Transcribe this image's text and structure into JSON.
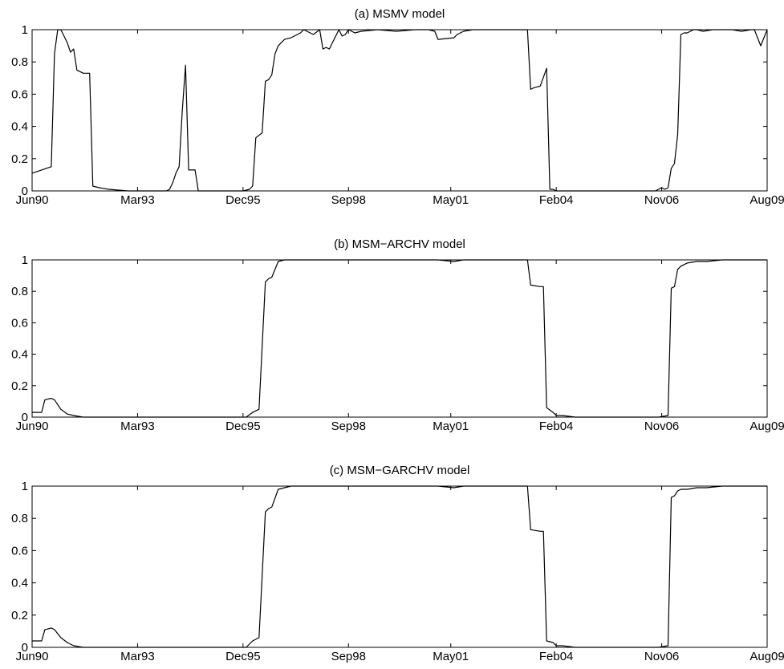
{
  "chart_data": [
    {
      "type": "line",
      "title": "(a) MSMV model",
      "xlabel": "",
      "ylabel": "",
      "xlim": [
        "1990-06",
        "2009-08"
      ],
      "ylim": [
        0,
        1
      ],
      "y_ticks": [
        "0",
        "0.2",
        "0.4",
        "0.6",
        "0.8",
        "1"
      ],
      "x_tick_positions": [
        "1990-06",
        "1993-03",
        "1995-12",
        "1998-09",
        "2001-05",
        "2004-02",
        "2006-11",
        "2009-08"
      ],
      "x_tick_labels": [
        "Jun90",
        "Mar93",
        "Dec95",
        "Sep98",
        "May01",
        "Feb04",
        "Nov06",
        "Aug09"
      ],
      "grid": false,
      "series": [
        {
          "x": [
            "1990-06",
            "1990-09",
            "1990-12",
            "1991-01",
            "1991-02",
            "1991-03",
            "1991-04",
            "1991-05",
            "1991-06",
            "1991-07",
            "1991-08",
            "1991-10",
            "1991-12",
            "1992-01",
            "1992-03",
            "1992-06",
            "1992-12",
            "1993-06",
            "1993-12",
            "1994-01",
            "1994-02",
            "1994-03",
            "1994-04",
            "1994-05",
            "1994-06",
            "1994-07",
            "1994-08",
            "1994-09",
            "1994-10",
            "1995-02",
            "1995-06",
            "1995-09",
            "1995-12",
            "1996-02",
            "1996-03",
            "1996-04",
            "1996-06",
            "1996-07",
            "1996-08",
            "1996-09",
            "1996-10",
            "1996-11",
            "1996-12",
            "1997-01",
            "1997-03",
            "1997-05",
            "1997-06",
            "1997-07",
            "1997-09",
            "1997-10",
            "1997-12",
            "1998-01",
            "1998-02",
            "1998-03",
            "1998-06",
            "1998-07",
            "1998-08",
            "1998-09",
            "1998-10",
            "1998-11",
            "1999-01",
            "1999-06",
            "1999-12",
            "2000-06",
            "2000-10",
            "2000-12",
            "2001-01",
            "2001-06",
            "2001-07",
            "2001-09",
            "2001-12",
            "2002-03",
            "2002-06",
            "2002-09",
            "2002-12",
            "2003-03",
            "2003-05",
            "2003-06",
            "2003-07",
            "2003-09",
            "2003-11",
            "2003-12",
            "2004-01",
            "2004-02",
            "2004-03",
            "2004-06",
            "2004-12",
            "2005-06",
            "2005-12",
            "2006-06",
            "2006-08",
            "2006-09",
            "2006-11",
            "2006-12",
            "2007-01",
            "2007-02",
            "2007-03",
            "2007-04",
            "2007-05",
            "2007-06",
            "2007-07",
            "2007-08",
            "2007-09",
            "2007-10",
            "2007-12",
            "2008-03",
            "2008-06",
            "2008-09",
            "2008-12",
            "2009-03",
            "2009-04",
            "2009-06",
            "2009-08"
          ],
          "y": [
            0.11,
            0.13,
            0.15,
            0.85,
            1,
            1,
            0.96,
            0.92,
            0.86,
            0.88,
            0.75,
            0.73,
            0.73,
            0.03,
            0.02,
            0.01,
            0,
            0,
            0,
            0.01,
            0.05,
            0.11,
            0.15,
            0.5,
            0.78,
            0.13,
            0.13,
            0.13,
            0,
            0,
            0,
            0,
            0,
            0.01,
            0.03,
            0.33,
            0.36,
            0.68,
            0.69,
            0.72,
            0.85,
            0.9,
            0.92,
            0.94,
            0.95,
            0.97,
            0.98,
            1,
            0.98,
            0.97,
            1,
            0.88,
            0.89,
            0.88,
            1,
            0.96,
            0.97,
            1,
            0.99,
            0.98,
            0.99,
            1,
            0.99,
            1,
            1,
            0.99,
            0.94,
            0.95,
            0.97,
            0.99,
            1,
            1,
            1,
            1,
            1,
            1,
            1,
            0.63,
            0.64,
            0.65,
            0.76,
            0.01,
            0.01,
            0,
            0,
            0,
            0,
            0,
            0,
            0,
            0,
            0,
            0.02,
            0.01,
            0.02,
            0.14,
            0.17,
            0.35,
            0.97,
            0.98,
            0.98,
            0.99,
            1,
            1,
            0.99,
            1,
            1,
            1,
            0.99,
            1,
            1,
            0.9,
            1
          ]
        }
      ]
    },
    {
      "type": "line",
      "title": "(b) MSM−ARCHV model",
      "xlabel": "",
      "ylabel": "",
      "xlim": [
        "1990-06",
        "2009-08"
      ],
      "ylim": [
        0,
        1
      ],
      "y_ticks": [
        "0",
        "0.2",
        "0.4",
        "0.6",
        "0.8",
        "1"
      ],
      "x_tick_positions": [
        "1990-06",
        "1993-03",
        "1995-12",
        "1998-09",
        "2001-05",
        "2004-02",
        "2006-11",
        "2009-08"
      ],
      "x_tick_labels": [
        "Jun90",
        "Mar93",
        "Dec95",
        "Sep98",
        "May01",
        "Feb04",
        "Nov06",
        "Aug09"
      ],
      "grid": false,
      "series": [
        {
          "x": [
            "1990-06",
            "1990-09",
            "1990-10",
            "1990-12",
            "1991-01",
            "1991-03",
            "1991-05",
            "1991-07",
            "1991-10",
            "1992-01",
            "1992-06",
            "1993-01",
            "1993-06",
            "1994-01",
            "1994-06",
            "1995-01",
            "1995-06",
            "1996-01",
            "1996-03",
            "1996-05",
            "1996-07",
            "1996-08",
            "1996-09",
            "1996-11",
            "1997-01",
            "1997-03",
            "1997-06",
            "1998-01",
            "1998-06",
            "1999-01",
            "1999-06",
            "2000-01",
            "2000-06",
            "2001-01",
            "2001-06",
            "2001-09",
            "2002-01",
            "2002-06",
            "2003-01",
            "2003-05",
            "2003-06",
            "2003-09",
            "2003-10",
            "2003-11",
            "2004-01",
            "2004-02",
            "2004-04",
            "2004-08",
            "2005-01",
            "2005-06",
            "2006-01",
            "2006-06",
            "2006-10",
            "2007-01",
            "2007-02",
            "2007-03",
            "2007-04",
            "2007-05",
            "2007-07",
            "2007-10",
            "2008-01",
            "2008-06",
            "2009-01",
            "2009-08"
          ],
          "y": [
            0.03,
            0.03,
            0.11,
            0.12,
            0.11,
            0.05,
            0.02,
            0.01,
            0,
            0,
            0,
            0,
            0,
            0,
            0,
            0,
            0,
            0,
            0.03,
            0.05,
            0.86,
            0.88,
            0.89,
            0.99,
            1,
            1,
            1,
            1,
            1,
            1,
            1,
            1,
            1,
            1,
            0.99,
            1,
            1,
            1,
            1,
            1,
            0.84,
            0.83,
            0.83,
            0.06,
            0.03,
            0.01,
            0.01,
            0,
            0,
            0,
            0,
            0,
            0,
            0.01,
            0.82,
            0.83,
            0.94,
            0.96,
            0.98,
            0.99,
            0.99,
            1,
            1,
            1
          ]
        }
      ]
    },
    {
      "type": "line",
      "title": "(c) MSM−GARCHV model",
      "xlabel": "",
      "ylabel": "",
      "xlim": [
        "1990-06",
        "2009-08"
      ],
      "ylim": [
        0,
        1
      ],
      "y_ticks": [
        "0",
        "0.2",
        "0.4",
        "0.6",
        "0.8",
        "1"
      ],
      "x_tick_positions": [
        "1990-06",
        "1993-03",
        "1995-12",
        "1998-09",
        "2001-05",
        "2004-02",
        "2006-11",
        "2009-08"
      ],
      "x_tick_labels": [
        "Jun90",
        "Mar93",
        "Dec95",
        "Sep98",
        "May01",
        "Feb04",
        "Nov06",
        "Aug09"
      ],
      "grid": false,
      "series": [
        {
          "x": [
            "1990-06",
            "1990-09",
            "1990-10",
            "1990-12",
            "1991-01",
            "1991-03",
            "1991-05",
            "1991-07",
            "1991-10",
            "1992-01",
            "1992-06",
            "1993-01",
            "1993-06",
            "1994-01",
            "1994-06",
            "1995-01",
            "1995-06",
            "1996-01",
            "1996-03",
            "1996-05",
            "1996-07",
            "1996-08",
            "1996-09",
            "1996-11",
            "1997-01",
            "1997-03",
            "1997-06",
            "1998-01",
            "1998-06",
            "1999-01",
            "1999-06",
            "2000-01",
            "2000-06",
            "2001-01",
            "2001-06",
            "2001-09",
            "2002-01",
            "2002-06",
            "2003-01",
            "2003-05",
            "2003-06",
            "2003-09",
            "2003-10",
            "2003-11",
            "2004-01",
            "2004-02",
            "2004-04",
            "2004-08",
            "2005-01",
            "2005-06",
            "2006-01",
            "2006-06",
            "2006-10",
            "2007-01",
            "2007-02",
            "2007-03",
            "2007-04",
            "2007-05",
            "2007-07",
            "2007-10",
            "2008-01",
            "2008-06",
            "2009-01",
            "2009-08"
          ],
          "y": [
            0.04,
            0.04,
            0.11,
            0.12,
            0.11,
            0.06,
            0.03,
            0.01,
            0,
            0,
            0,
            0,
            0,
            0,
            0,
            0,
            0,
            0,
            0.04,
            0.06,
            0.84,
            0.86,
            0.87,
            0.98,
            0.99,
            1,
            1,
            1,
            1,
            1,
            1,
            1,
            1,
            1,
            0.99,
            1,
            1,
            1,
            1,
            1,
            0.73,
            0.72,
            0.72,
            0.04,
            0.03,
            0.01,
            0.01,
            0,
            0,
            0,
            0,
            0,
            0,
            0.01,
            0.93,
            0.94,
            0.97,
            0.98,
            0.98,
            0.99,
            0.99,
            1,
            1,
            1
          ]
        }
      ]
    }
  ]
}
